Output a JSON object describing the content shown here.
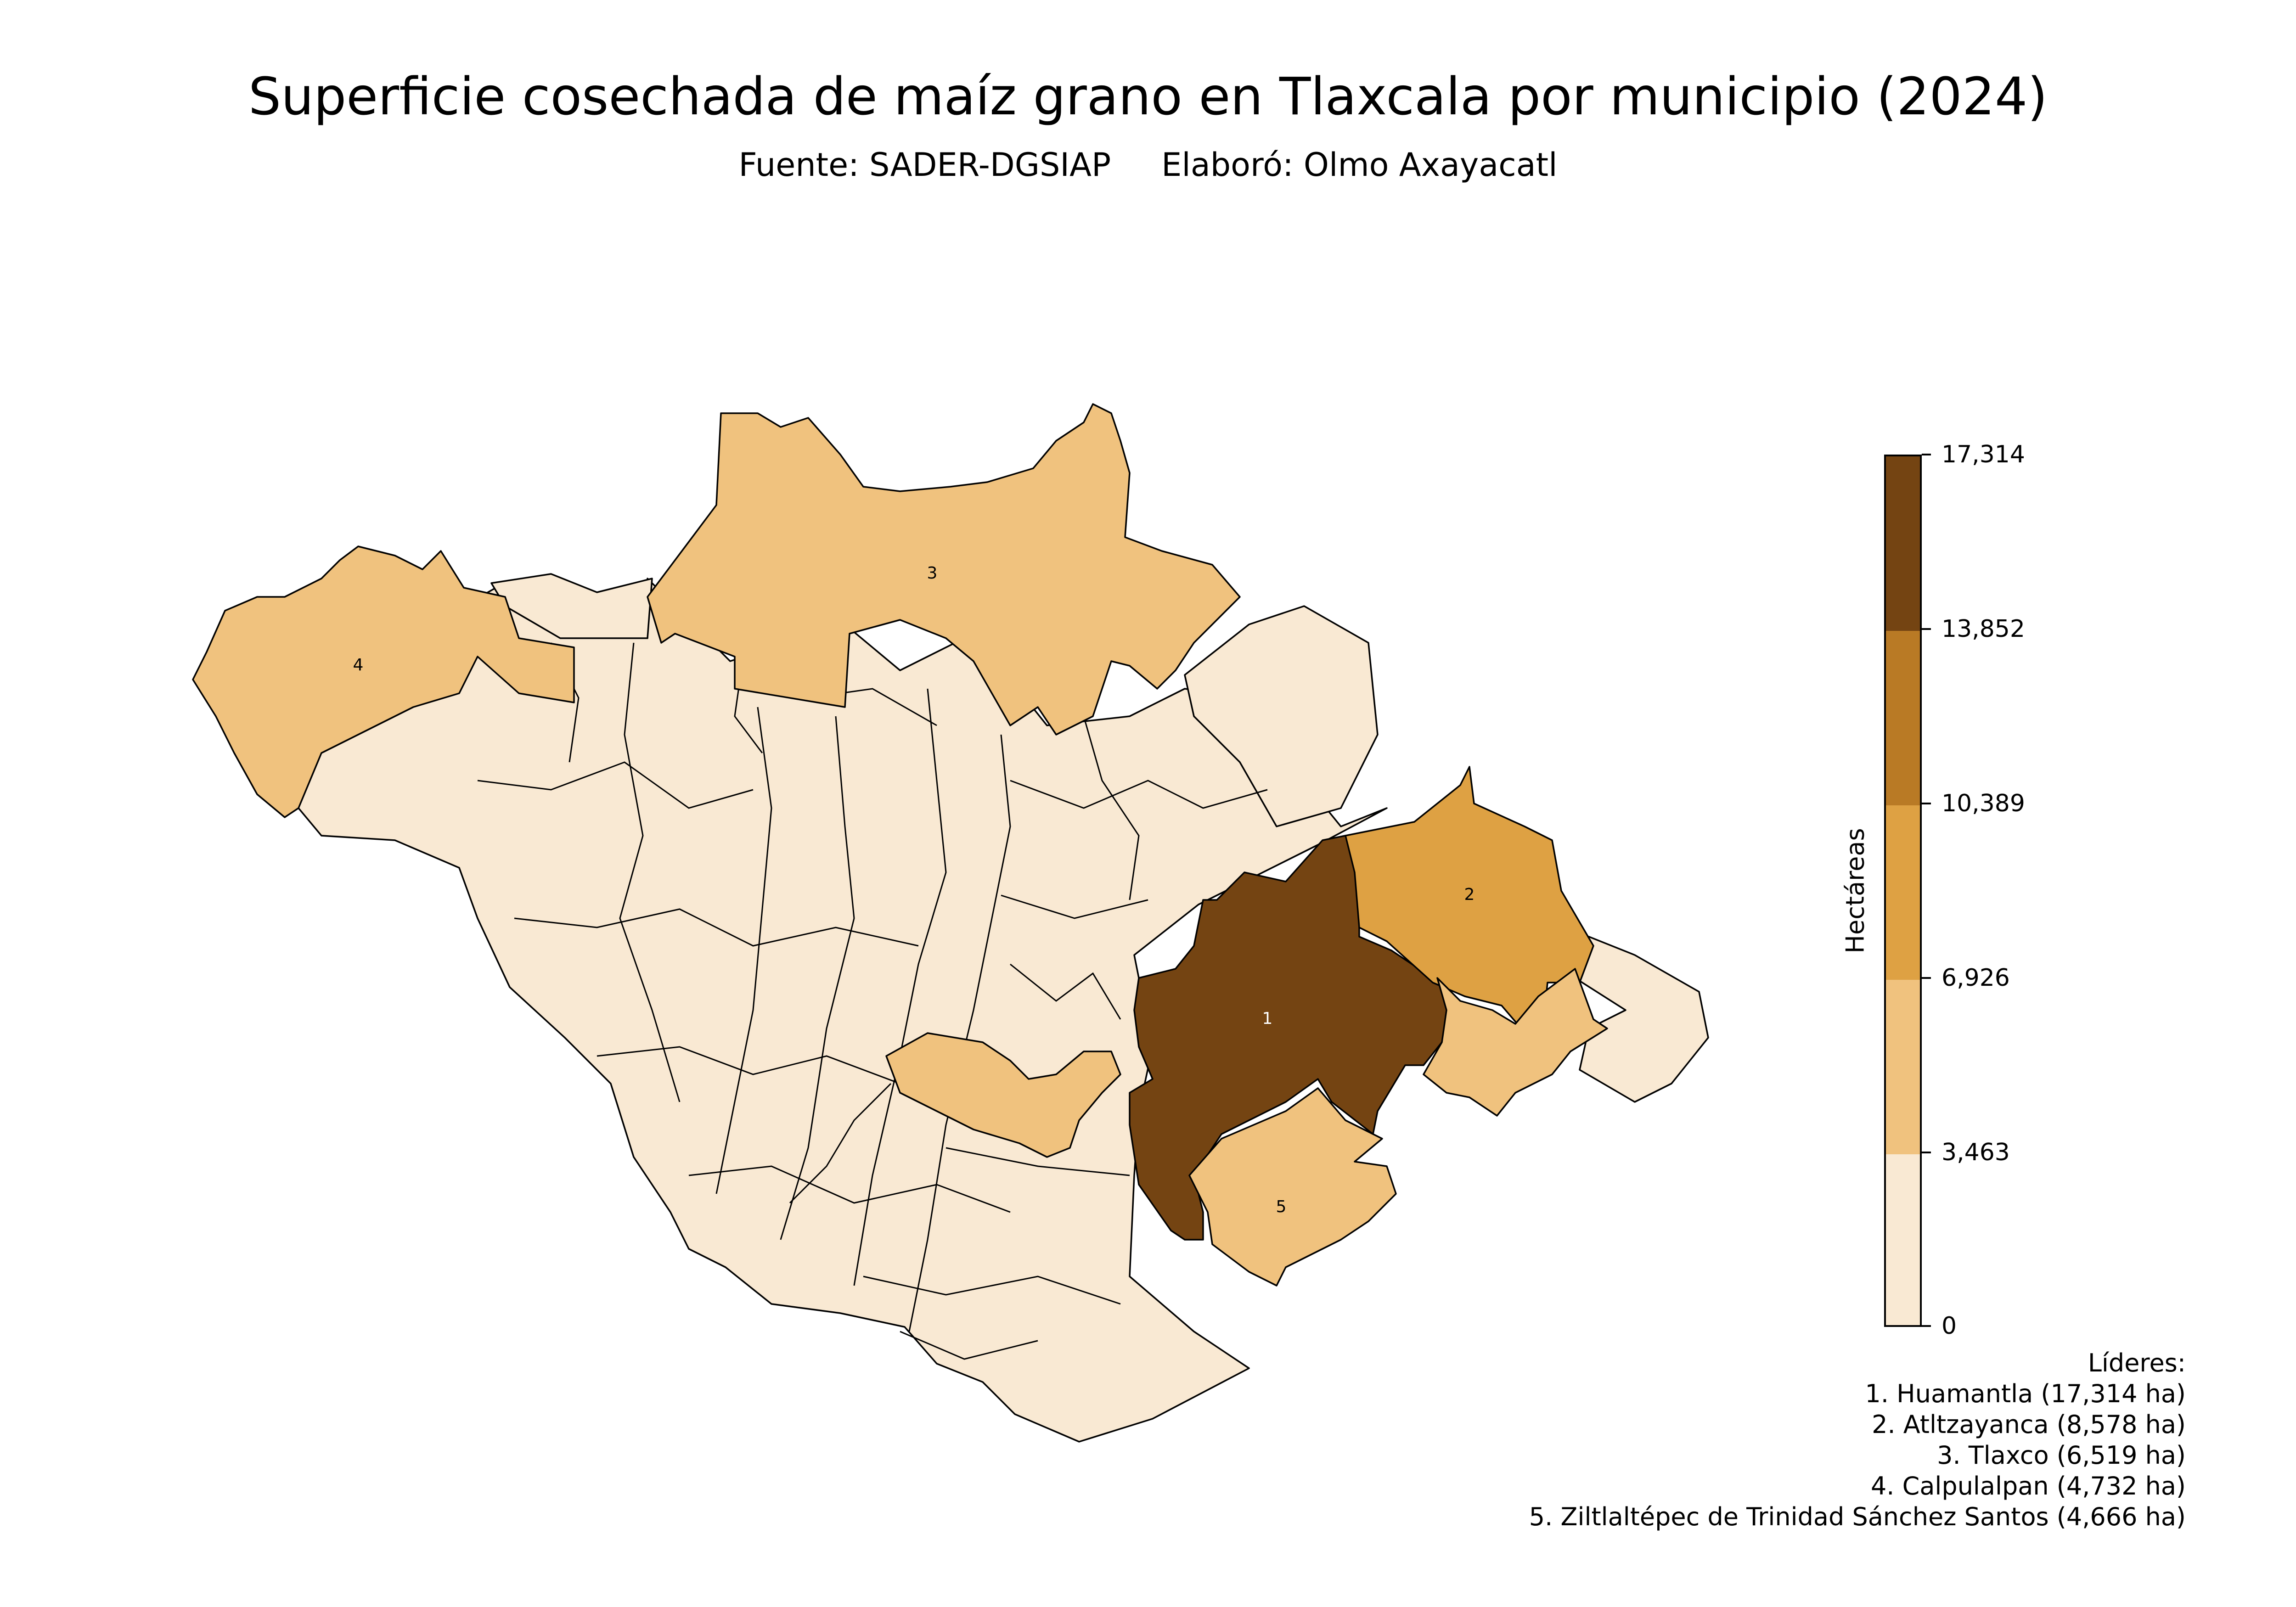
{
  "title": "Superficie cosechada de maíz grano en Tlaxcala por municipio (2024)",
  "subtitle": {
    "source": "Fuente: SADER-DGSIAP",
    "author": "Elaboró: Olmo Axayacatl"
  },
  "colorbar": {
    "label": "Hectáreas",
    "ticks": [
      "17,314",
      "13,852",
      "10,389",
      "6,926",
      "3,463",
      "0"
    ],
    "classes": [
      {
        "min": 0,
        "max": 3463,
        "color": "#f9e9d3"
      },
      {
        "min": 3463,
        "max": 6926,
        "color": "#f0c27e"
      },
      {
        "min": 6926,
        "max": 10389,
        "color": "#dea143"
      },
      {
        "min": 10389,
        "max": 13852,
        "color": "#b97a25"
      },
      {
        "min": 13852,
        "max": 17314,
        "color": "#744412"
      }
    ]
  },
  "leaders": {
    "title": "Líderes:",
    "items": [
      "1. Huamantla (17,314 ha)",
      "2. Atltzayanca (8,578 ha)",
      "3. Tlaxco (6,519 ha)",
      "4. Calpulalpan (4,732 ha)",
      "5. Ziltlaltépec de Trinidad Sánchez Santos (4,666 ha)"
    ]
  },
  "map_labels": [
    "1",
    "2",
    "3",
    "4",
    "5"
  ],
  "colors": {
    "low": "#f9e9d3",
    "mid": "#f0c27e",
    "high": "#dea143",
    "top": "#744412",
    "border": "#000000"
  }
}
